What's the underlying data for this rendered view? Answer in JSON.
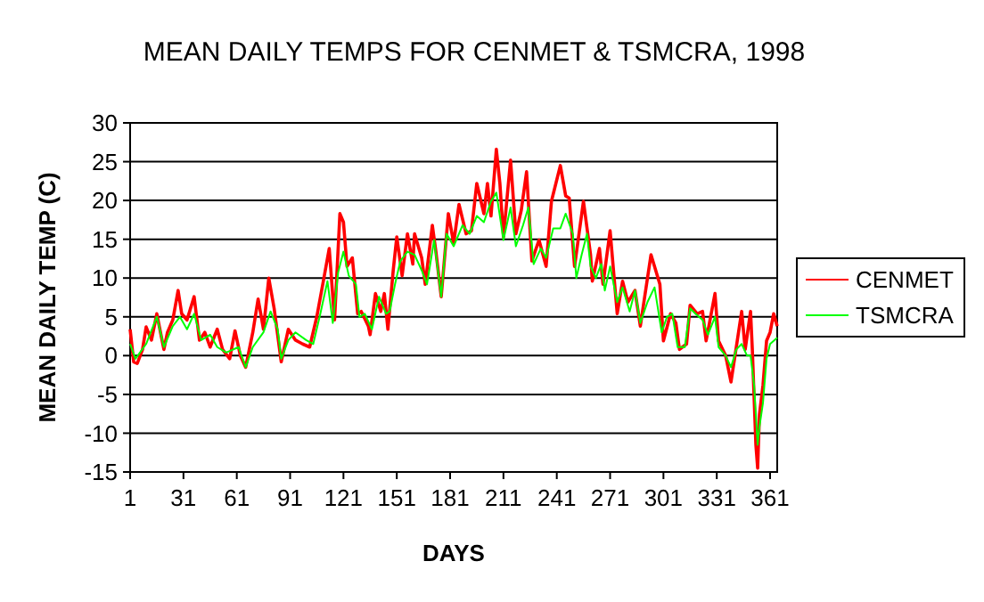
{
  "chart_data": {
    "type": "line",
    "title": "MEAN DAILY TEMPS FOR CENMET & TSMCRA, 1998",
    "xlabel": "DAYS",
    "ylabel": "MEAN DAILY TEMP (C)",
    "xlim": [
      1,
      365
    ],
    "xticks": [
      1,
      31,
      61,
      91,
      121,
      151,
      181,
      211,
      241,
      271,
      301,
      331,
      361
    ],
    "ylim": [
      -15,
      30
    ],
    "yticks": [
      -15,
      -10,
      -5,
      0,
      5,
      10,
      15,
      20,
      25,
      30
    ],
    "grid": "y",
    "legend": "right",
    "marker": "none",
    "line_style": "solid",
    "series": [
      {
        "name": "CENMET",
        "color": "#ff0000",
        "x": [
          1,
          3,
          5,
          8,
          10,
          13,
          16,
          20,
          22,
          25,
          28,
          30,
          33,
          37,
          40,
          43,
          46,
          50,
          53,
          57,
          60,
          63,
          66,
          70,
          73,
          76,
          79,
          82,
          86,
          90,
          94,
          98,
          102,
          106,
          110,
          113,
          116,
          119,
          121,
          123,
          126,
          129,
          131,
          135,
          136,
          139,
          142,
          144,
          146,
          149,
          151,
          154,
          157,
          160,
          161,
          165,
          167,
          171,
          173,
          176,
          180,
          183,
          186,
          190,
          193,
          196,
          200,
          202,
          204,
          207,
          209,
          211,
          215,
          218,
          221,
          224,
          227,
          231,
          235,
          238,
          243,
          246,
          248,
          251,
          256,
          260,
          261,
          265,
          267,
          271,
          275,
          278,
          281,
          285,
          288,
          290,
          294,
          296,
          299,
          301,
          305,
          308,
          310,
          314,
          316,
          320,
          323,
          325,
          330,
          332,
          336,
          339,
          341,
          345,
          347,
          350,
          351,
          352,
          353,
          354,
          355,
          357,
          359,
          361,
          363,
          365
        ],
        "values": [
          3.4,
          -0.8,
          -1,
          0.8,
          3.7,
          2,
          5.4,
          0.8,
          3,
          4.6,
          8.4,
          5.4,
          4.6,
          7.6,
          2,
          3,
          1.1,
          3.4,
          0.8,
          -0.4,
          3.2,
          0,
          -1.5,
          3,
          7.3,
          3.4,
          10,
          6.1,
          -0.8,
          3.4,
          2,
          1.5,
          1.1,
          5,
          10,
          13.8,
          4.6,
          18.3,
          17.2,
          11.5,
          12.6,
          5.4,
          5.7,
          3.8,
          2.7,
          8,
          5.7,
          8,
          3.4,
          11,
          15.3,
          10.3,
          15.7,
          11.8,
          15.7,
          12.6,
          9.2,
          16.8,
          13.4,
          7.6,
          18.3,
          14.5,
          19.5,
          15.7,
          16.1,
          22.2,
          18.3,
          22.2,
          18,
          26.6,
          22.2,
          15.3,
          25.2,
          15.7,
          18.7,
          23.7,
          12.2,
          14.9,
          11.5,
          19.9,
          24.5,
          20.6,
          20.3,
          11.5,
          19.9,
          13,
          9.6,
          13.8,
          9.2,
          16.1,
          5.4,
          9.6,
          6.9,
          8.4,
          3.8,
          6.9,
          13,
          11.5,
          9.2,
          1.9,
          5.4,
          4.2,
          0.8,
          1.5,
          6.5,
          5.4,
          5.7,
          1.9,
          8,
          1.9,
          0,
          -3.4,
          -0.4,
          5.7,
          0.8,
          5.7,
          0.8,
          -5.4,
          -11.5,
          -14.5,
          -7.6,
          -3.8,
          1.9,
          3,
          5.4,
          3.8
        ]
      },
      {
        "name": "TSMCRA",
        "color": "#00ff00",
        "x": [
          1,
          4,
          10,
          16,
          20,
          25,
          29,
          33,
          37,
          41,
          46,
          50,
          55,
          62,
          66,
          70,
          76,
          80,
          84,
          86,
          90,
          94,
          100,
          104,
          108,
          112,
          115,
          118,
          121,
          124,
          128,
          130,
          133,
          137,
          141,
          145,
          147,
          150,
          153,
          157,
          161,
          165,
          168,
          172,
          176,
          179,
          183,
          188,
          192,
          196,
          200,
          204,
          207,
          211,
          215,
          218,
          222,
          225,
          228,
          232,
          235,
          239,
          243,
          246,
          250,
          252,
          255,
          258,
          260,
          263,
          266,
          268,
          271,
          275,
          278,
          282,
          285,
          288,
          292,
          296,
          300,
          303,
          306,
          309,
          313,
          316,
          319,
          323,
          326,
          330,
          332,
          336,
          339,
          342,
          345,
          348,
          350,
          352,
          353,
          354,
          355,
          357,
          359,
          361,
          363,
          365
        ],
        "values": [
          1.5,
          -0.4,
          1.5,
          5,
          1.1,
          3.8,
          5,
          3.4,
          5.4,
          2,
          2.7,
          1.1,
          0.4,
          1.1,
          -1.5,
          1.1,
          3,
          5.7,
          3.4,
          -0.4,
          2,
          3,
          2,
          1.5,
          5.4,
          9.6,
          4.2,
          10.7,
          13.4,
          10.3,
          9.2,
          5,
          5.4,
          3.4,
          7.6,
          5.4,
          5.7,
          9.2,
          12.2,
          13.4,
          13,
          11,
          9.2,
          14.9,
          7.6,
          15.7,
          14.1,
          16.8,
          15.7,
          18,
          17.2,
          19.9,
          21,
          14.9,
          19.1,
          14.1,
          16.8,
          19.1,
          11.8,
          13.8,
          12.6,
          16.4,
          16.4,
          18.3,
          15.7,
          10,
          13,
          15.7,
          11.5,
          10,
          11.8,
          8.4,
          11.5,
          6.9,
          8.8,
          5.7,
          8.4,
          4.2,
          6.9,
          8.8,
          3,
          5,
          5.4,
          1.1,
          1.1,
          6.1,
          5.4,
          4.6,
          2.7,
          5,
          1.1,
          0,
          -1.5,
          0.8,
          1.5,
          0,
          0,
          -3.8,
          -7.6,
          -11.5,
          -9.2,
          -6.1,
          -0.4,
          1.5,
          1.9,
          2.3
        ]
      }
    ]
  }
}
